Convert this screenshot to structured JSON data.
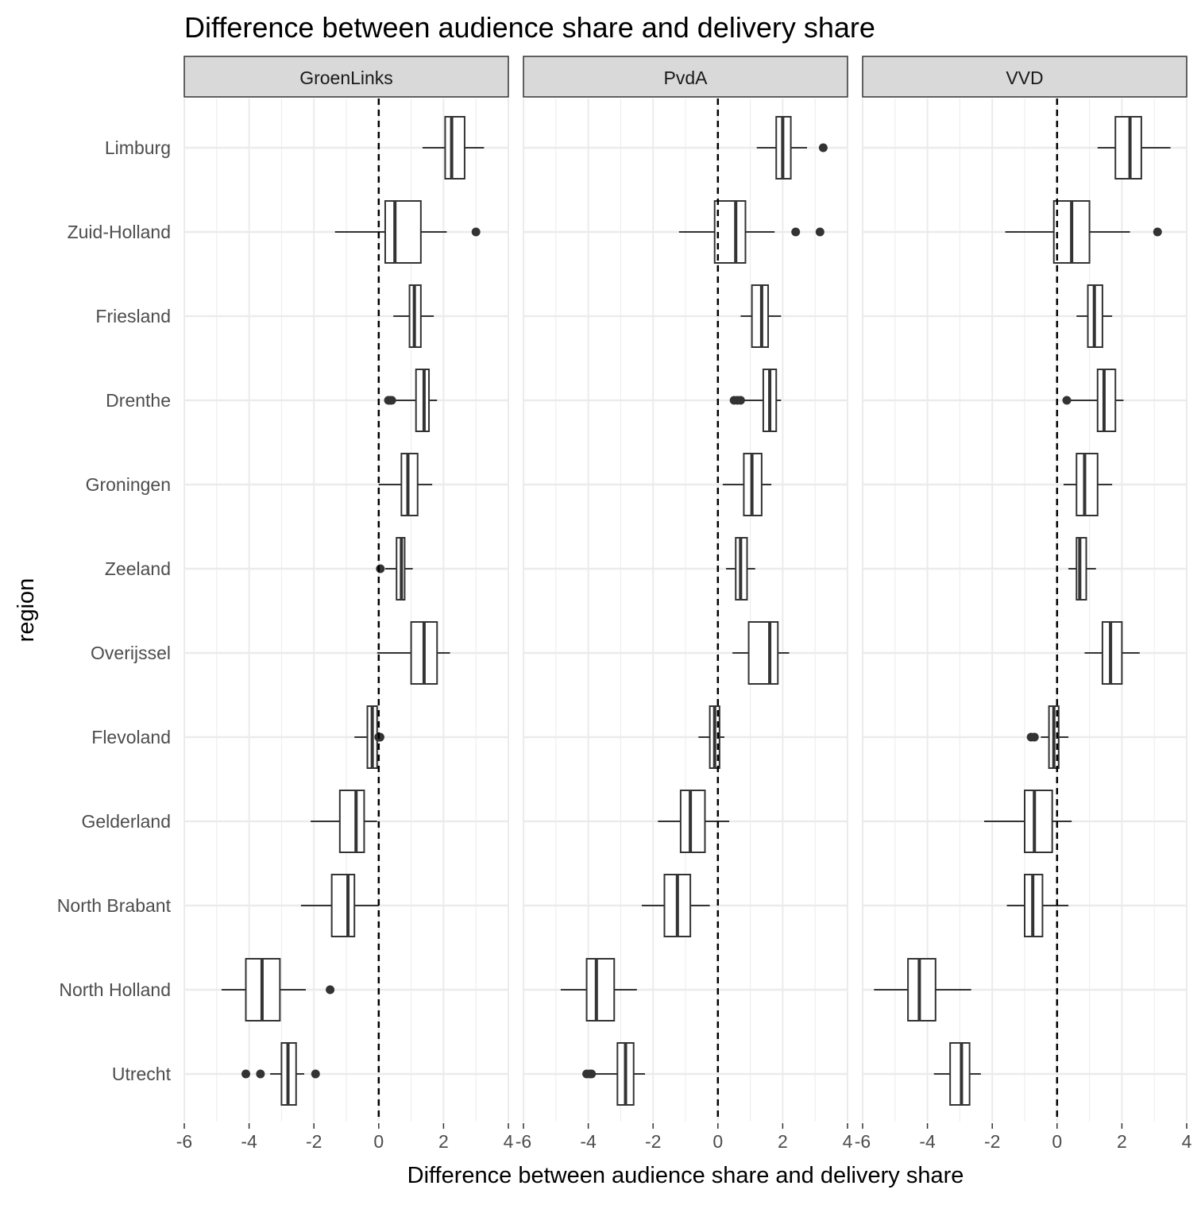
{
  "chart_data": {
    "type": "boxplot",
    "title": "Difference between audience share and delivery share",
    "xlabel": "Difference between audience share and delivery share",
    "ylabel": "region",
    "xlim": [
      -6,
      4
    ],
    "x_ticks": [
      -6,
      -4,
      -2,
      0,
      2,
      4
    ],
    "x_tick_labels": [
      "-6",
      "-4",
      "-2",
      "0",
      "2",
      "4"
    ],
    "reference_line_x": 0,
    "grid": true,
    "categories": [
      "Limburg",
      "Zuid-Holland",
      "Friesland",
      "Drenthe",
      "Groningen",
      "Zeeland",
      "Overijssel",
      "Flevoland",
      "Gelderland",
      "North Brabant",
      "North Holland",
      "Utrecht"
    ],
    "panels": [
      {
        "name": "GroenLinks",
        "boxes": [
          {
            "region": "Limburg",
            "whisker_low": 1.35,
            "q1": 2.05,
            "median": 2.25,
            "q3": 2.65,
            "whisker_high": 3.25,
            "outliers": []
          },
          {
            "region": "Zuid-Holland",
            "whisker_low": -1.35,
            "q1": 0.2,
            "median": 0.5,
            "q3": 1.3,
            "whisker_high": 2.1,
            "outliers": [
              3.0
            ]
          },
          {
            "region": "Friesland",
            "whisker_low": 0.45,
            "q1": 0.95,
            "median": 1.1,
            "q3": 1.3,
            "whisker_high": 1.7,
            "outliers": []
          },
          {
            "region": "Drenthe",
            "whisker_low": 0.5,
            "q1": 1.15,
            "median": 1.4,
            "q3": 1.55,
            "whisker_high": 1.8,
            "outliers": [
              0.3,
              0.35,
              0.4
            ]
          },
          {
            "region": "Groningen",
            "whisker_low": 0.0,
            "q1": 0.7,
            "median": 0.9,
            "q3": 1.2,
            "whisker_high": 1.65,
            "outliers": []
          },
          {
            "region": "Zeeland",
            "whisker_low": 0.2,
            "q1": 0.55,
            "median": 0.7,
            "q3": 0.8,
            "whisker_high": 1.05,
            "outliers": [
              0.05
            ]
          },
          {
            "region": "Overijssel",
            "whisker_low": -0.05,
            "q1": 1.0,
            "median": 1.4,
            "q3": 1.8,
            "whisker_high": 2.2,
            "outliers": []
          },
          {
            "region": "Flevoland",
            "whisker_low": -0.75,
            "q1": -0.35,
            "median": -0.2,
            "q3": -0.05,
            "whisker_high": -0.02,
            "outliers": [
              0.0,
              0.02,
              0.04
            ]
          },
          {
            "region": "Gelderland",
            "whisker_low": -2.1,
            "q1": -1.2,
            "median": -0.7,
            "q3": -0.45,
            "whisker_high": -0.05,
            "outliers": []
          },
          {
            "region": "North Brabant",
            "whisker_low": -2.4,
            "q1": -1.45,
            "median": -0.95,
            "q3": -0.75,
            "whisker_high": 0.0,
            "outliers": []
          },
          {
            "region": "North Holland",
            "whisker_low": -4.85,
            "q1": -4.1,
            "median": -3.6,
            "q3": -3.05,
            "whisker_high": -2.25,
            "outliers": [
              -1.5
            ]
          },
          {
            "region": "Utrecht",
            "whisker_low": -3.35,
            "q1": -3.0,
            "median": -2.8,
            "q3": -2.55,
            "whisker_high": -2.3,
            "outliers": [
              -4.1,
              -3.65,
              -1.95
            ]
          }
        ]
      },
      {
        "name": "PvdA",
        "boxes": [
          {
            "region": "Limburg",
            "whisker_low": 1.2,
            "q1": 1.8,
            "median": 2.0,
            "q3": 2.25,
            "whisker_high": 2.75,
            "outliers": [
              3.25
            ]
          },
          {
            "region": "Zuid-Holland",
            "whisker_low": -1.2,
            "q1": -0.1,
            "median": 0.55,
            "q3": 0.85,
            "whisker_high": 1.75,
            "outliers": [
              2.4,
              3.15
            ]
          },
          {
            "region": "Friesland",
            "whisker_low": 0.7,
            "q1": 1.05,
            "median": 1.35,
            "q3": 1.55,
            "whisker_high": 1.95,
            "outliers": []
          },
          {
            "region": "Drenthe",
            "whisker_low": 0.8,
            "q1": 1.4,
            "median": 1.6,
            "q3": 1.8,
            "whisker_high": 1.95,
            "outliers": [
              0.5,
              0.6,
              0.7
            ]
          },
          {
            "region": "Groningen",
            "whisker_low": 0.15,
            "q1": 0.8,
            "median": 1.05,
            "q3": 1.35,
            "whisker_high": 1.65,
            "outliers": []
          },
          {
            "region": "Zeeland",
            "whisker_low": 0.25,
            "q1": 0.55,
            "median": 0.7,
            "q3": 0.9,
            "whisker_high": 1.15,
            "outliers": []
          },
          {
            "region": "Overijssel",
            "whisker_low": 0.45,
            "q1": 0.95,
            "median": 1.6,
            "q3": 1.85,
            "whisker_high": 2.2,
            "outliers": []
          },
          {
            "region": "Flevoland",
            "whisker_low": -0.6,
            "q1": -0.25,
            "median": -0.1,
            "q3": 0.05,
            "whisker_high": 0.2,
            "outliers": []
          },
          {
            "region": "Gelderland",
            "whisker_low": -1.85,
            "q1": -1.15,
            "median": -0.85,
            "q3": -0.4,
            "whisker_high": 0.35,
            "outliers": []
          },
          {
            "region": "North Brabant",
            "whisker_low": -2.35,
            "q1": -1.65,
            "median": -1.25,
            "q3": -0.85,
            "whisker_high": -0.25,
            "outliers": []
          },
          {
            "region": "North Holland",
            "whisker_low": -4.85,
            "q1": -4.05,
            "median": -3.75,
            "q3": -3.2,
            "whisker_high": -2.5,
            "outliers": []
          },
          {
            "region": "Utrecht",
            "whisker_low": -3.8,
            "q1": -3.1,
            "median": -2.85,
            "q3": -2.6,
            "whisker_high": -2.25,
            "outliers": [
              -4.05,
              -3.95,
              -3.9
            ]
          }
        ]
      },
      {
        "name": "VVD",
        "boxes": [
          {
            "region": "Limburg",
            "whisker_low": 1.25,
            "q1": 1.8,
            "median": 2.25,
            "q3": 2.6,
            "whisker_high": 3.5,
            "outliers": []
          },
          {
            "region": "Zuid-Holland",
            "whisker_low": -1.6,
            "q1": -0.1,
            "median": 0.45,
            "q3": 1.0,
            "whisker_high": 2.25,
            "outliers": [
              3.1
            ]
          },
          {
            "region": "Friesland",
            "whisker_low": 0.6,
            "q1": 0.95,
            "median": 1.15,
            "q3": 1.4,
            "whisker_high": 1.7,
            "outliers": []
          },
          {
            "region": "Drenthe",
            "whisker_low": 0.4,
            "q1": 1.25,
            "median": 1.45,
            "q3": 1.8,
            "whisker_high": 2.05,
            "outliers": [
              0.3
            ]
          },
          {
            "region": "Groningen",
            "whisker_low": 0.2,
            "q1": 0.6,
            "median": 0.85,
            "q3": 1.25,
            "whisker_high": 1.7,
            "outliers": []
          },
          {
            "region": "Zeeland",
            "whisker_low": 0.35,
            "q1": 0.6,
            "median": 0.7,
            "q3": 0.9,
            "whisker_high": 1.2,
            "outliers": []
          },
          {
            "region": "Overijssel",
            "whisker_low": 0.85,
            "q1": 1.4,
            "median": 1.65,
            "q3": 2.0,
            "whisker_high": 2.55,
            "outliers": []
          },
          {
            "region": "Flevoland",
            "whisker_low": -0.5,
            "q1": -0.25,
            "median": -0.1,
            "q3": 0.05,
            "whisker_high": 0.35,
            "outliers": [
              -0.8,
              -0.7
            ]
          },
          {
            "region": "Gelderland",
            "whisker_low": -2.25,
            "q1": -1.0,
            "median": -0.7,
            "q3": -0.15,
            "whisker_high": 0.45,
            "outliers": []
          },
          {
            "region": "North Brabant",
            "whisker_low": -1.55,
            "q1": -1.0,
            "median": -0.75,
            "q3": -0.45,
            "whisker_high": 0.35,
            "outliers": []
          },
          {
            "region": "North Holland",
            "whisker_low": -5.65,
            "q1": -4.6,
            "median": -4.25,
            "q3": -3.75,
            "whisker_high": -2.65,
            "outliers": []
          },
          {
            "region": "Utrecht",
            "whisker_low": -3.8,
            "q1": -3.3,
            "median": -2.95,
            "q3": -2.7,
            "whisker_high": -2.35,
            "outliers": []
          }
        ]
      }
    ]
  }
}
